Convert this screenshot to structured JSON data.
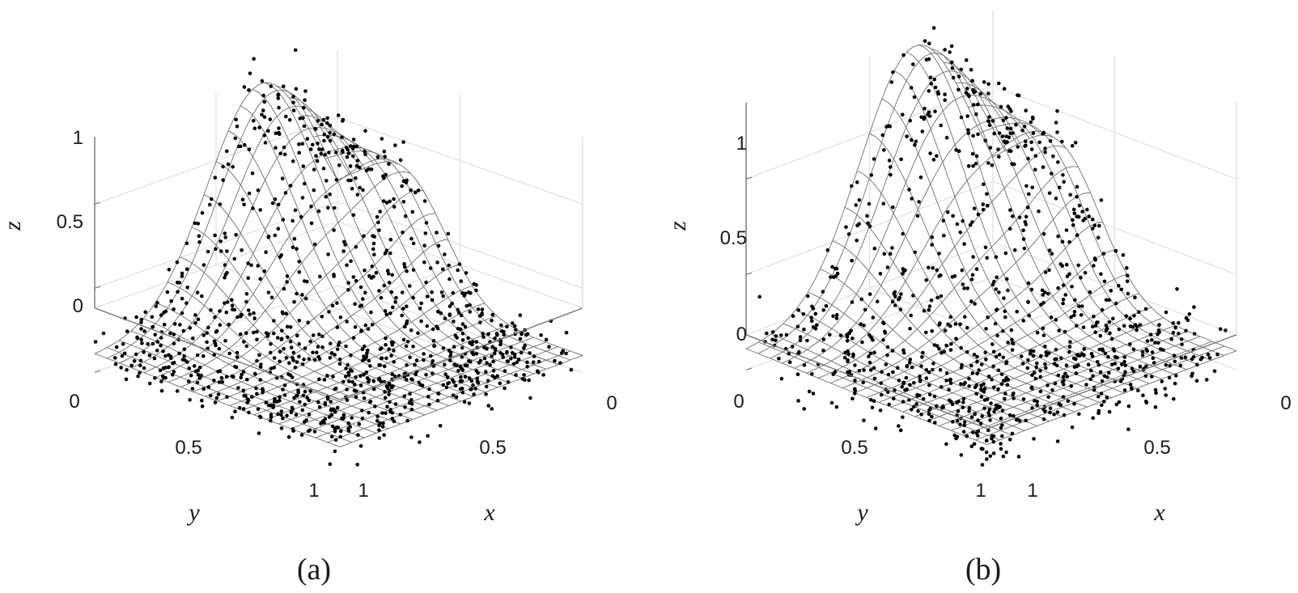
{
  "figure": {
    "panels": [
      {
        "label": "(a)"
      },
      {
        "label": "(b)"
      }
    ]
  },
  "colors": {
    "surface_mesh": "#6e6e6e",
    "points": "#000000",
    "box_grid": "#e2e2e2",
    "axis_lines": "#777777",
    "text": "#1a1a1a"
  },
  "chart_data": [
    {
      "type": "scatter",
      "variant": "3d-scatter-with-mesh-surface",
      "panel_label": "(a)",
      "xlabel": "x",
      "ylabel": "y",
      "zlabel": "z",
      "xlim": [
        0,
        1
      ],
      "ylim": [
        0,
        1
      ],
      "zlim": [
        -0.4,
        1.4
      ],
      "x_ticks": [
        "0",
        "0.5",
        "1"
      ],
      "y_ticks": [
        "0",
        "0.5",
        "1"
      ],
      "z_ticks": [
        "0",
        "0.5",
        "1"
      ],
      "grid": true,
      "surface": {
        "description": "Two Gaussian bumps over the unit square",
        "base": 0.1,
        "peaks": [
          {
            "x": 0.32,
            "y": 0.0,
            "height": 1.25,
            "width": 0.22
          },
          {
            "x": 0.0,
            "y": 0.3,
            "height": 0.55,
            "width": 0.16
          }
        ],
        "mesh_resolution": 21
      },
      "points": {
        "count": 1100,
        "noise_std": 0.08
      }
    },
    {
      "type": "scatter",
      "variant": "3d-scatter-with-mesh-surface",
      "panel_label": "(b)",
      "xlabel": "x",
      "ylabel": "y",
      "zlabel": "z",
      "xlim": [
        0,
        1
      ],
      "ylim": [
        0,
        1
      ],
      "zlim": [
        -0.2,
        1.4
      ],
      "x_ticks": [
        "0",
        "0.5",
        "1"
      ],
      "y_ticks": [
        "0",
        "0.5",
        "1"
      ],
      "z_ticks": [
        "0",
        "0.5",
        "1"
      ],
      "grid": true,
      "surface": {
        "description": "Two Gaussian bumps over the unit square",
        "base": 0.1,
        "peaks": [
          {
            "x": 0.32,
            "y": 0.0,
            "height": 1.25,
            "width": 0.22
          },
          {
            "x": 0.0,
            "y": 0.3,
            "height": 0.55,
            "width": 0.16
          }
        ],
        "mesh_resolution": 21
      },
      "points": {
        "count": 1000,
        "noise_std": 0.09
      }
    }
  ]
}
